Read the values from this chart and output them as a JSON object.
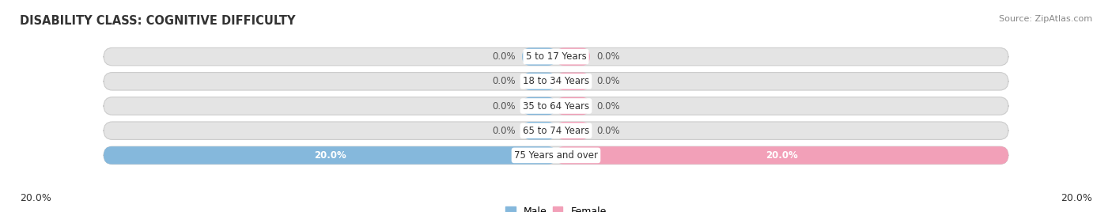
{
  "title": "DISABILITY CLASS: COGNITIVE DIFFICULTY",
  "source": "Source: ZipAtlas.com",
  "categories": [
    "5 to 17 Years",
    "18 to 34 Years",
    "35 to 64 Years",
    "65 to 74 Years",
    "75 Years and over"
  ],
  "male_values": [
    0.0,
    0.0,
    0.0,
    0.0,
    20.0
  ],
  "female_values": [
    0.0,
    0.0,
    0.0,
    0.0,
    20.0
  ],
  "male_color": "#85b8dc",
  "female_color": "#f2a0b8",
  "bar_bg_color": "#e4e4e4",
  "max_value": 20.0,
  "bar_height": 0.72,
  "title_fontsize": 10.5,
  "label_fontsize": 8.5,
  "tick_fontsize": 9,
  "legend_fontsize": 9,
  "bg_color": "#ffffff",
  "text_color": "#333333",
  "source_color": "#888888",
  "zero_label_color": "#555555",
  "nonzero_label_color": "#ffffff",
  "min_colored_stub": 1.5
}
